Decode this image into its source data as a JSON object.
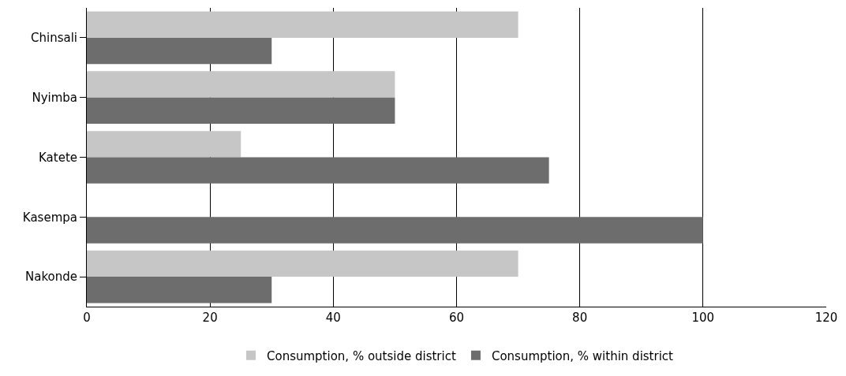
{
  "chart_data": {
    "type": "bar",
    "orientation": "horizontal",
    "categories": [
      "Chinsali",
      "Nyimba",
      "Katete",
      "Kasempa",
      "Nakonde"
    ],
    "series": [
      {
        "name": "Consumption, % outside district",
        "color": "#c6c6c6",
        "values": [
          70,
          50,
          25,
          0,
          70
        ]
      },
      {
        "name": "Consumption, % within district",
        "color": "#6d6d6d",
        "values": [
          30,
          50,
          75,
          100,
          30
        ]
      }
    ],
    "xlim": [
      0,
      120
    ],
    "xticks": [
      0,
      20,
      40,
      60,
      80,
      100,
      120
    ],
    "grid": "x",
    "legend": "bottom"
  }
}
